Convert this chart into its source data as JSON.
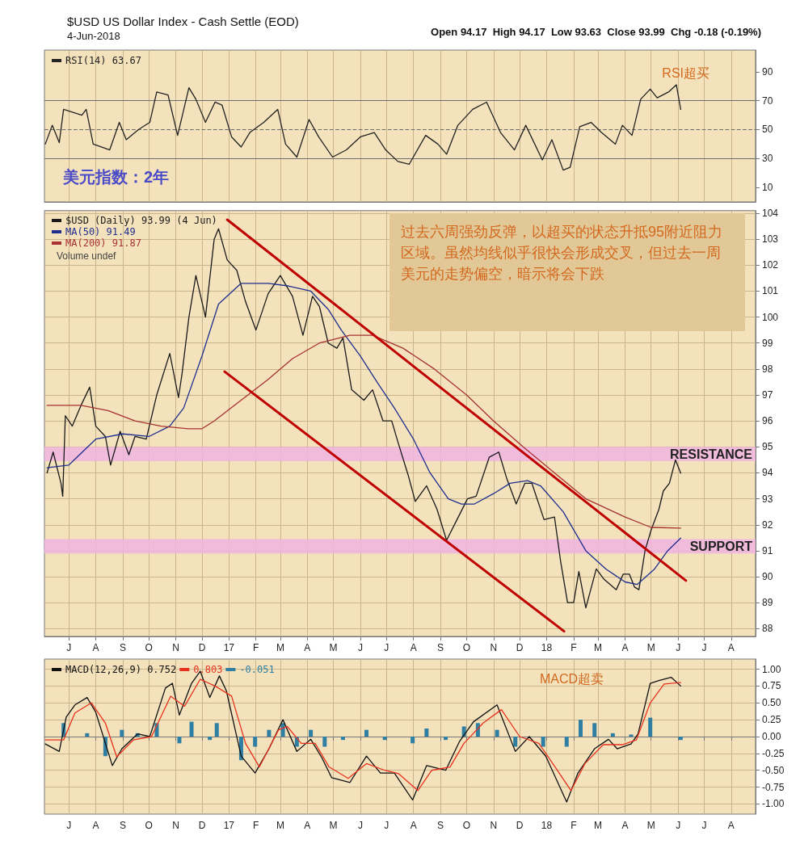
{
  "chart_data": [
    {
      "type": "line",
      "title": "$USD US Dollar Index - Cash Settle (EOD)",
      "subtitle": "4-Jun-2018",
      "annotations": [
        "Open 94.17  High 94.17  Low 93.63  Close 93.99  Chg -0.18 (-0.19%)",
        "RSI超买",
        "美元指数：2年"
      ],
      "xlim": [
        "2016-06-03",
        "2018-08-29"
      ],
      "xticks": [
        {
          "value": "2016-07-01",
          "label": null
        },
        {
          "value": "2016-08-01",
          "label": null
        },
        {
          "value": "2016-09-01",
          "label": null
        },
        {
          "value": "2016-10-01",
          "label": null
        },
        {
          "value": "2016-11-01",
          "label": null
        },
        {
          "value": "2016-12-01",
          "label": null
        },
        {
          "value": "2017-01-01",
          "label": null
        },
        {
          "value": "2017-02-01",
          "label": null
        },
        {
          "value": "2017-03-01",
          "label": null
        },
        {
          "value": "2017-04-01",
          "label": null
        },
        {
          "value": "2017-05-01",
          "label": null
        },
        {
          "value": "2017-06-01",
          "label": null
        },
        {
          "value": "2017-07-01",
          "label": null
        },
        {
          "value": "2017-08-01",
          "label": null
        },
        {
          "value": "2017-09-01",
          "label": null
        },
        {
          "value": "2017-10-01",
          "label": null
        },
        {
          "value": "2017-11-01",
          "label": null
        },
        {
          "value": "2017-12-01",
          "label": null
        },
        {
          "value": "2018-01-01",
          "label": null
        },
        {
          "value": "2018-02-01",
          "label": null
        },
        {
          "value": "2018-03-01",
          "label": null
        },
        {
          "value": "2018-04-01",
          "label": null
        },
        {
          "value": "2018-05-01",
          "label": null
        },
        {
          "value": "2018-06-01",
          "label": null
        },
        {
          "value": "2018-07-01",
          "label": null
        },
        {
          "value": "2018-08-01",
          "label": null
        }
      ],
      "ylim": [
        0,
        105
      ],
      "yticks": [
        10,
        30,
        50,
        70,
        90
      ],
      "grid": "x",
      "legend": "top left",
      "tick_labels": "y",
      "marker": "none",
      "ref_lines": [
        {
          "axis": "y",
          "value": 70,
          "color": "#6e6e6e",
          "line_style": "solid"
        },
        {
          "axis": "y",
          "value": 30,
          "color": "#6e6e6e",
          "line_style": "solid"
        },
        {
          "axis": "y",
          "value": 50,
          "color": "#6e6e6e",
          "line_style": "dashed"
        }
      ],
      "x": [
        "2016-06-04",
        "2016-06-12",
        "2016-06-20",
        "2016-06-25",
        "2016-07-16",
        "2016-07-21",
        "2016-07-29",
        "2016-08-17",
        "2016-08-28",
        "2016-09-05",
        "2016-09-19",
        "2016-10-02",
        "2016-10-10",
        "2016-10-23",
        "2016-11-03",
        "2016-11-16",
        "2016-11-24",
        "2016-12-05",
        "2016-12-16",
        "2016-12-24",
        "2017-01-04",
        "2017-01-15",
        "2017-01-25",
        "2017-02-10",
        "2017-02-26",
        "2017-03-07",
        "2017-03-20",
        "2017-04-03",
        "2017-04-14",
        "2017-04-30",
        "2017-05-16",
        "2017-06-01",
        "2017-06-17",
        "2017-06-30",
        "2017-07-14",
        "2017-07-27",
        "2017-08-15",
        "2017-08-29",
        "2017-09-08",
        "2017-09-21",
        "2017-10-08",
        "2017-10-24",
        "2017-11-09",
        "2017-11-25",
        "2017-12-08",
        "2017-12-27",
        "2018-01-07",
        "2018-01-20",
        "2018-01-28",
        "2018-02-08",
        "2018-02-21",
        "2018-03-05",
        "2018-03-21",
        "2018-03-29",
        "2018-04-09",
        "2018-04-19",
        "2018-04-30",
        "2018-05-08",
        "2018-05-21",
        "2018-05-30",
        "2018-06-04"
      ],
      "series": [
        {
          "name": "RSI(14) 63.67",
          "color": "#222222",
          "values": [
            40,
            53,
            41,
            64,
            60,
            64,
            40,
            36,
            55,
            43,
            50,
            55,
            76,
            74,
            46,
            79,
            71,
            55,
            69,
            67,
            45,
            38,
            48,
            55,
            64,
            40,
            31,
            57,
            45,
            31,
            36,
            45,
            48,
            36,
            28,
            26,
            46,
            40,
            33,
            53,
            64,
            69,
            48,
            36,
            53,
            29,
            43,
            22,
            24,
            52,
            55,
            48,
            40,
            53,
            46,
            71,
            78,
            72,
            76,
            81,
            64
          ]
        }
      ]
    },
    {
      "type": "line",
      "annotations": [
        "过去六周强劲反弹，以超买的状态升抵95附近阻力区域。虽然均线似乎很快会形成交叉，但过去一周美元的走势偏空，暗示将会下跌",
        "Volume undef"
      ],
      "xlim": [
        "2016-06-03",
        "2018-08-29"
      ],
      "xticks": [
        {
          "value": "2016-07-01",
          "label": "J"
        },
        {
          "value": "2016-08-01",
          "label": "A"
        },
        {
          "value": "2016-09-01",
          "label": "S"
        },
        {
          "value": "2016-10-01",
          "label": "O"
        },
        {
          "value": "2016-11-01",
          "label": "N"
        },
        {
          "value": "2016-12-01",
          "label": "D"
        },
        {
          "value": "2017-01-01",
          "label": "17"
        },
        {
          "value": "2017-02-01",
          "label": "F"
        },
        {
          "value": "2017-03-01",
          "label": "M"
        },
        {
          "value": "2017-04-01",
          "label": "A"
        },
        {
          "value": "2017-05-01",
          "label": "M"
        },
        {
          "value": "2017-06-01",
          "label": "J"
        },
        {
          "value": "2017-07-01",
          "label": "J"
        },
        {
          "value": "2017-08-01",
          "label": "A"
        },
        {
          "value": "2017-09-01",
          "label": "S"
        },
        {
          "value": "2017-10-01",
          "label": "O"
        },
        {
          "value": "2017-11-01",
          "label": "N"
        },
        {
          "value": "2017-12-01",
          "label": "D"
        },
        {
          "value": "2018-01-01",
          "label": "18"
        },
        {
          "value": "2018-02-01",
          "label": "F"
        },
        {
          "value": "2018-03-01",
          "label": "M"
        },
        {
          "value": "2018-04-01",
          "label": "A"
        },
        {
          "value": "2018-05-01",
          "label": "M"
        },
        {
          "value": "2018-06-01",
          "label": "J"
        },
        {
          "value": "2018-07-01",
          "label": "J"
        },
        {
          "value": "2018-08-01",
          "label": "A"
        }
      ],
      "ylim": [
        87.7,
        104.1
      ],
      "yticks": [
        88,
        89,
        90,
        91,
        92,
        93,
        94,
        95,
        96,
        97,
        98,
        99,
        100,
        101,
        102,
        103,
        104
      ],
      "grid": true,
      "legend": "top left",
      "marker": "none",
      "bands": [
        {
          "axis": "y",
          "from": 94.45,
          "to": 95.0,
          "label": "RESISTANCE",
          "color": "#f0b4e0"
        },
        {
          "axis": "y",
          "from": 90.9,
          "to": 91.45,
          "label": "SUPPORT",
          "color": "#f0b4e0"
        }
      ],
      "series": [
        {
          "name": "$USD (Daily) 93.99 (4 Jun)",
          "color": "#1a1a1a",
          "x": [
            "2016-06-06",
            "2016-06-13",
            "2016-06-22",
            "2016-06-24",
            "2016-06-27",
            "2016-07-05",
            "2016-07-15",
            "2016-07-25",
            "2016-08-01",
            "2016-08-12",
            "2016-08-18",
            "2016-08-29",
            "2016-09-08",
            "2016-09-15",
            "2016-09-28",
            "2016-10-10",
            "2016-10-25",
            "2016-11-04",
            "2016-11-08",
            "2016-11-16",
            "2016-11-24",
            "2016-12-05",
            "2016-12-15",
            "2016-12-20",
            "2016-12-30",
            "2017-01-10",
            "2017-01-20",
            "2017-02-01",
            "2017-02-15",
            "2017-03-01",
            "2017-03-15",
            "2017-03-27",
            "2017-04-07",
            "2017-04-15",
            "2017-04-25",
            "2017-05-05",
            "2017-05-12",
            "2017-05-22",
            "2017-06-05",
            "2017-06-15",
            "2017-06-27",
            "2017-07-07",
            "2017-07-14",
            "2017-07-26",
            "2017-08-03",
            "2017-08-16",
            "2017-08-28",
            "2017-09-08",
            "2017-09-20",
            "2017-10-02",
            "2017-10-12",
            "2017-10-27",
            "2017-11-07",
            "2017-11-16",
            "2017-11-27",
            "2017-12-07",
            "2017-12-15",
            "2017-12-29",
            "2018-01-10",
            "2018-01-17",
            "2018-01-25",
            "2018-02-01",
            "2018-02-07",
            "2018-02-15",
            "2018-02-27",
            "2018-03-08",
            "2018-03-15",
            "2018-03-22",
            "2018-03-30",
            "2018-04-06",
            "2018-04-12",
            "2018-04-17",
            "2018-04-24",
            "2018-05-01",
            "2018-05-10",
            "2018-05-15",
            "2018-05-22",
            "2018-05-29",
            "2018-06-04"
          ],
          "values": [
            94.0,
            94.8,
            93.6,
            93.1,
            96.2,
            95.8,
            96.6,
            97.3,
            95.8,
            95.4,
            94.3,
            95.6,
            94.7,
            95.4,
            95.3,
            97.0,
            98.6,
            96.9,
            97.8,
            100.0,
            101.6,
            100.0,
            103.0,
            103.4,
            102.2,
            101.8,
            100.6,
            99.5,
            100.9,
            101.6,
            100.8,
            99.3,
            100.8,
            100.4,
            99.0,
            98.8,
            99.2,
            97.2,
            96.8,
            97.2,
            96.0,
            96.0,
            95.2,
            93.9,
            92.9,
            93.5,
            92.6,
            91.4,
            92.2,
            93.0,
            93.1,
            94.6,
            94.8,
            93.8,
            92.8,
            93.6,
            93.6,
            92.2,
            92.3,
            90.6,
            89.0,
            89.0,
            90.2,
            88.8,
            90.3,
            89.9,
            89.7,
            89.5,
            90.1,
            90.1,
            89.6,
            89.5,
            91.0,
            91.8,
            92.6,
            93.3,
            93.6,
            94.5,
            93.99
          ]
        },
        {
          "name": "MA(50) 91.49",
          "color": "#1f2f8f",
          "x": [
            "2016-06-06",
            "2016-07-01",
            "2016-08-01",
            "2016-09-01",
            "2016-10-01",
            "2016-10-25",
            "2016-11-10",
            "2016-12-01",
            "2016-12-20",
            "2017-01-15",
            "2017-02-15",
            "2017-03-10",
            "2017-04-05",
            "2017-04-25",
            "2017-05-10",
            "2017-06-01",
            "2017-06-20",
            "2017-07-10",
            "2017-08-01",
            "2017-08-20",
            "2017-09-10",
            "2017-09-25",
            "2017-10-10",
            "2017-11-01",
            "2017-11-20",
            "2017-12-10",
            "2017-12-25",
            "2018-01-20",
            "2018-02-15",
            "2018-03-10",
            "2018-04-01",
            "2018-04-15",
            "2018-05-05",
            "2018-05-20",
            "2018-06-04"
          ],
          "values": [
            94.2,
            94.3,
            95.3,
            95.5,
            95.4,
            95.8,
            96.5,
            98.5,
            100.5,
            101.3,
            101.3,
            101.2,
            101.0,
            100.3,
            99.5,
            98.5,
            97.5,
            96.5,
            95.3,
            94.0,
            93.0,
            92.8,
            92.8,
            93.2,
            93.6,
            93.7,
            93.5,
            92.5,
            91.0,
            90.3,
            89.8,
            89.7,
            90.3,
            91.0,
            91.49
          ]
        },
        {
          "name": "MA(200) 91.87",
          "color": "#a83232",
          "x": [
            "2016-06-06",
            "2016-07-15",
            "2016-08-15",
            "2016-09-15",
            "2016-10-15",
            "2016-11-15",
            "2016-12-01",
            "2016-12-15",
            "2017-01-15",
            "2017-02-15",
            "2017-03-15",
            "2017-04-15",
            "2017-05-20",
            "2017-06-15",
            "2017-07-20",
            "2017-08-25",
            "2017-10-01",
            "2017-11-01",
            "2017-12-05",
            "2018-01-10",
            "2018-02-15",
            "2018-04-01",
            "2018-05-01",
            "2018-06-04"
          ],
          "values": [
            96.6,
            96.6,
            96.4,
            96.0,
            95.8,
            95.7,
            95.7,
            96.0,
            96.8,
            97.6,
            98.4,
            99.0,
            99.3,
            99.3,
            98.8,
            98.0,
            97.0,
            96.0,
            95.0,
            94.0,
            93.0,
            92.3,
            91.9,
            91.87
          ]
        },
        {
          "color": "#c00000",
          "x": [
            "2016-12-30",
            "2018-06-10"
          ],
          "values": [
            103.75,
            89.85
          ]
        },
        {
          "color": "#c00000",
          "x": [
            "2016-12-27",
            "2018-01-21"
          ],
          "values": [
            97.9,
            87.9
          ]
        }
      ]
    },
    {
      "type": "line",
      "xlim": [
        "2016-06-03",
        "2018-08-29"
      ],
      "xticks": [
        {
          "value": "2016-07-01",
          "label": "J"
        },
        {
          "value": "2016-08-01",
          "label": "A"
        },
        {
          "value": "2016-09-01",
          "label": "S"
        },
        {
          "value": "2016-10-01",
          "label": "O"
        },
        {
          "value": "2016-11-01",
          "label": "N"
        },
        {
          "value": "2016-12-01",
          "label": "D"
        },
        {
          "value": "2017-01-01",
          "label": "17"
        },
        {
          "value": "2017-02-01",
          "label": "F"
        },
        {
          "value": "2017-03-01",
          "label": "M"
        },
        {
          "value": "2017-04-01",
          "label": "A"
        },
        {
          "value": "2017-05-01",
          "label": "M"
        },
        {
          "value": "2017-06-01",
          "label": "J"
        },
        {
          "value": "2017-07-01",
          "label": "J"
        },
        {
          "value": "2017-08-01",
          "label": "A"
        },
        {
          "value": "2017-09-01",
          "label": "S"
        },
        {
          "value": "2017-10-01",
          "label": "O"
        },
        {
          "value": "2017-11-01",
          "label": "N"
        },
        {
          "value": "2017-12-01",
          "label": "D"
        },
        {
          "value": "2018-01-01",
          "label": "18"
        },
        {
          "value": "2018-02-01",
          "label": "F"
        },
        {
          "value": "2018-03-01",
          "label": "M"
        },
        {
          "value": "2018-04-01",
          "label": "A"
        },
        {
          "value": "2018-05-01",
          "label": "M"
        },
        {
          "value": "2018-06-01",
          "label": "J"
        },
        {
          "value": "2018-07-01",
          "label": "J"
        },
        {
          "value": "2018-08-01",
          "label": "A"
        }
      ],
      "ylim": [
        -1.15,
        1.15
      ],
      "yticks": [
        {
          "value": 1,
          "label": "1.00"
        },
        {
          "value": 0.75,
          "label": "0.75"
        },
        {
          "value": 0.5,
          "label": "0.50"
        },
        {
          "value": 0.25,
          "label": "0.25"
        },
        {
          "value": 0,
          "label": "0.00"
        },
        {
          "value": -0.25,
          "label": "-0.25"
        },
        {
          "value": -0.5,
          "label": "-0.50"
        },
        {
          "value": -0.75,
          "label": "-0.75"
        },
        {
          "value": -1,
          "label": "-1.00"
        }
      ],
      "grid": true,
      "legend": "top left",
      "marker": "none",
      "annotations": [
        "MACD超卖"
      ],
      "series": [
        {
          "name": "MACD(12,26,9) 0.752",
          "color": "#111111",
          "x": [
            "2016-06-04",
            "2016-06-20",
            "2016-06-28",
            "2016-07-08",
            "2016-07-22",
            "2016-08-01",
            "2016-08-20",
            "2016-08-31",
            "2016-09-18",
            "2016-10-02",
            "2016-10-20",
            "2016-10-28",
            "2016-11-05",
            "2016-11-19",
            "2016-11-29",
            "2016-12-10",
            "2016-12-21",
            "2016-12-29",
            "2017-01-15",
            "2017-01-31",
            "2017-02-16",
            "2017-03-04",
            "2017-03-20",
            "2017-04-05",
            "2017-04-18",
            "2017-04-29",
            "2017-05-20",
            "2017-06-08",
            "2017-06-24",
            "2017-07-10",
            "2017-07-31",
            "2017-08-16",
            "2017-09-07",
            "2017-09-23",
            "2017-10-09",
            "2017-11-05",
            "2017-11-26",
            "2017-12-12",
            "2017-12-31",
            "2018-01-24",
            "2018-02-06",
            "2018-02-25",
            "2018-03-13",
            "2018-03-23",
            "2018-04-08",
            "2018-04-16",
            "2018-04-30",
            "2018-05-10",
            "2018-05-24",
            "2018-06-04"
          ],
          "values": [
            -0.11,
            -0.22,
            0.29,
            0.47,
            0.58,
            0.36,
            -0.43,
            -0.18,
            0.04,
            0.0,
            0.72,
            0.79,
            0.32,
            0.79,
            0.97,
            0.58,
            0.9,
            0.68,
            -0.29,
            -0.54,
            -0.18,
            0.25,
            -0.22,
            -0.04,
            -0.32,
            -0.61,
            -0.68,
            -0.29,
            -0.54,
            -0.54,
            -0.94,
            -0.43,
            -0.5,
            -0.07,
            0.22,
            0.47,
            -0.22,
            0.0,
            -0.29,
            -0.97,
            -0.54,
            -0.18,
            -0.04,
            -0.18,
            -0.11,
            0.04,
            0.79,
            0.83,
            0.88,
            0.75
          ]
        },
        {
          "name": "0.803",
          "color": "#e8321e",
          "x": [
            "2016-06-04",
            "2016-06-25",
            "2016-07-08",
            "2016-07-27",
            "2016-08-12",
            "2016-08-25",
            "2016-09-13",
            "2016-10-04",
            "2016-10-26",
            "2016-11-11",
            "2016-11-29",
            "2016-12-16",
            "2017-01-04",
            "2017-01-20",
            "2017-02-05",
            "2017-02-27",
            "2017-03-09",
            "2017-03-25",
            "2017-04-10",
            "2017-04-26",
            "2017-05-18",
            "2017-06-08",
            "2017-06-29",
            "2017-07-15",
            "2017-08-06",
            "2017-08-22",
            "2017-09-12",
            "2017-09-28",
            "2017-10-20",
            "2017-11-10",
            "2017-12-01",
            "2017-12-23",
            "2018-01-08",
            "2018-01-29",
            "2018-02-14",
            "2018-03-07",
            "2018-03-29",
            "2018-04-14",
            "2018-04-30",
            "2018-05-16",
            "2018-06-04"
          ],
          "values": [
            -0.05,
            -0.05,
            0.35,
            0.5,
            0.2,
            -0.3,
            -0.05,
            0.0,
            0.6,
            0.45,
            0.85,
            0.75,
            0.6,
            -0.1,
            -0.45,
            0.1,
            0.15,
            -0.1,
            -0.1,
            -0.45,
            -0.62,
            -0.4,
            -0.5,
            -0.55,
            -0.8,
            -0.5,
            -0.45,
            -0.1,
            0.2,
            0.4,
            0.0,
            -0.1,
            -0.4,
            -0.8,
            -0.4,
            -0.12,
            -0.12,
            -0.05,
            0.5,
            0.78,
            0.8
          ]
        },
        {
          "name": "-0.051",
          "type": "bar",
          "color": "#2e7fa3",
          "x": [
            "2016-06-25",
            "2016-07-22",
            "2016-08-12",
            "2016-08-31",
            "2016-09-18",
            "2016-10-10",
            "2016-11-05",
            "2016-11-19",
            "2016-12-10",
            "2016-12-18",
            "2017-01-15",
            "2017-01-31",
            "2017-02-16",
            "2017-03-04",
            "2017-03-20",
            "2017-04-05",
            "2017-04-21",
            "2017-05-12",
            "2017-06-08",
            "2017-06-29",
            "2017-07-31",
            "2017-08-16",
            "2017-09-07",
            "2017-09-28",
            "2017-10-14",
            "2017-11-05",
            "2017-11-26",
            "2017-12-28",
            "2018-01-24",
            "2018-02-09",
            "2018-02-25",
            "2018-03-18",
            "2018-04-08",
            "2018-04-30",
            "2018-06-04"
          ],
          "values": [
            0.2,
            0.05,
            -0.29,
            0.1,
            0.05,
            0.2,
            -0.1,
            0.22,
            -0.05,
            0.2,
            -0.35,
            -0.15,
            0.1,
            0.2,
            -0.15,
            0.1,
            -0.15,
            -0.05,
            0.1,
            -0.05,
            -0.1,
            0.12,
            -0.05,
            0.15,
            0.2,
            0.1,
            -0.15,
            -0.15,
            -0.15,
            0.25,
            0.2,
            0.05,
            0.03,
            0.28,
            -0.05
          ]
        }
      ]
    }
  ]
}
